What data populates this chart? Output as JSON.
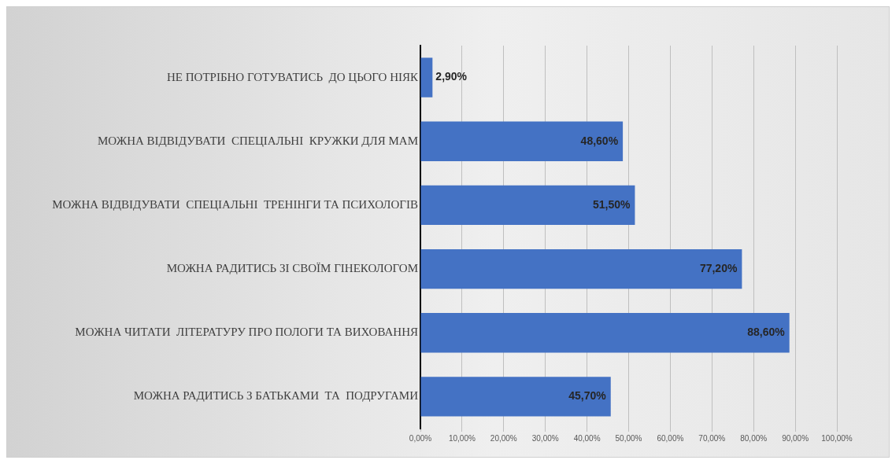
{
  "chart_data": {
    "type": "bar",
    "orientation": "horizontal",
    "categories": [
      "НЕ ПОТРІБНО ГОТУВАТИСЬ  ДО ЦЬОГО НІЯК",
      "МОЖНА ВІДВІДУВАТИ  СПЕЦІАЛЬНІ  КРУЖКИ ДЛЯ МАМ",
      "МОЖНА ВІДВІДУВАТИ  СПЕЦІАЛЬНІ  ТРЕНІНГИ ТА ПСИХОЛОГІВ",
      "МОЖНА РАДИТИСЬ ЗІ СВОЇМ ГІНЕКОЛОГОМ",
      "МОЖНА ЧИТАТИ  ЛІТЕРАТУРУ ПРО ПОЛОГИ ТА ВИХОВАННЯ",
      "МОЖНА РАДИТИСЬ З БАТЬКАМИ  ТА  ПОДРУГАМИ"
    ],
    "values": [
      2.9,
      48.6,
      51.5,
      77.2,
      88.6,
      45.7
    ],
    "value_labels": [
      "2,90%",
      "48,60%",
      "51,50%",
      "77,20%",
      "88,60%",
      "45,70%"
    ],
    "color": "#4472c4",
    "xlim": [
      0,
      100
    ],
    "xticks": [
      {
        "value": 0,
        "label": "0,00%"
      },
      {
        "value": 10,
        "label": "10,00%"
      },
      {
        "value": 20,
        "label": "20,00%"
      },
      {
        "value": 30,
        "label": "30,00%"
      },
      {
        "value": 40,
        "label": "40,00%"
      },
      {
        "value": 50,
        "label": "50,00%"
      },
      {
        "value": 60,
        "label": "60,00%"
      },
      {
        "value": 70,
        "label": "70,00%"
      },
      {
        "value": 80,
        "label": "80,00%"
      },
      {
        "value": 90,
        "label": "90,00%"
      },
      {
        "value": 100,
        "label": "100,00%"
      }
    ],
    "grid": "x",
    "legend": false
  }
}
